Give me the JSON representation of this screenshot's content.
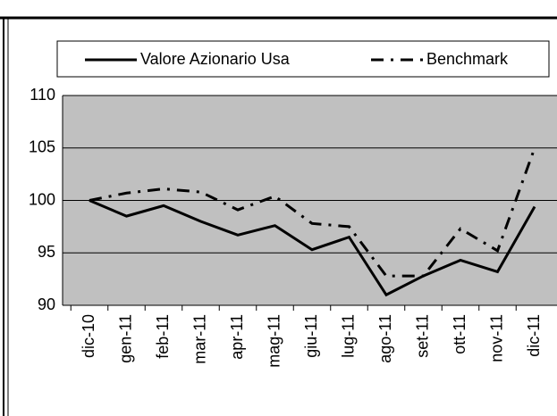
{
  "chart_data": {
    "type": "line",
    "categories": [
      "dic-10",
      "gen-11",
      "feb-11",
      "mar-11",
      "apr-11",
      "mag-11",
      "giu-11",
      "lug-11",
      "ago-11",
      "set-11",
      "ott-11",
      "nov-11",
      "dic-11"
    ],
    "series": [
      {
        "name": "Valore Azionario Usa",
        "color": "#000000",
        "style": "solid",
        "values": [
          100,
          98.5,
          99.5,
          98,
          96.7,
          97.6,
          95.3,
          96.5,
          91,
          92.8,
          94.3,
          93.2,
          99.4
        ]
      },
      {
        "name": "Benchmark",
        "color": "#000000",
        "style": "dashdot",
        "values": [
          100,
          100.7,
          101.1,
          100.8,
          99.1,
          100.4,
          97.8,
          97.5,
          92.8,
          92.8,
          97.3,
          95.2,
          105
        ]
      }
    ],
    "ylim": [
      90,
      110
    ],
    "yticks": [
      90,
      95,
      100,
      105,
      110
    ],
    "grid": true,
    "legend": "top"
  }
}
